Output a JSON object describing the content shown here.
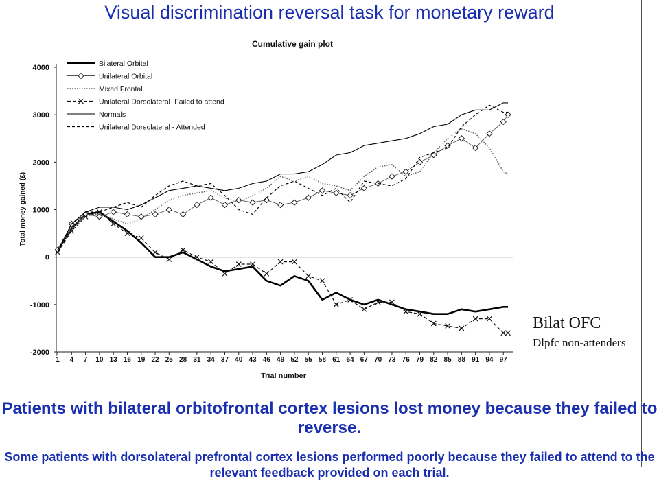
{
  "slide": {
    "title": "Visual discrimination reversal task for monetary reward",
    "note_1": "Bilat OFC",
    "note_2": "Dlpfc non-attenders",
    "conclusion_main": "Patients with bilateral orbitofrontal cortex lesions lost money because they failed to reverse.",
    "conclusion_sub": "Some patients with dorsolateral prefrontal cortex lesions performed poorly because they failed to attend to the relevant feedback provided on each trial."
  },
  "chart_data": {
    "type": "line",
    "title": "Cumulative gain plot",
    "xlabel": "Trial number",
    "ylabel": "Total money gained (£)",
    "ylim": [
      -2000,
      4000
    ],
    "xlim": [
      1,
      98
    ],
    "yticks": [
      -2000,
      -1000,
      0,
      1000,
      2000,
      3000,
      4000
    ],
    "xticks": [
      1,
      4,
      7,
      10,
      13,
      16,
      19,
      22,
      25,
      28,
      31,
      34,
      37,
      40,
      43,
      46,
      49,
      52,
      55,
      58,
      61,
      64,
      67,
      70,
      73,
      76,
      79,
      82,
      85,
      88,
      91,
      94,
      97
    ],
    "grid": false,
    "legend_position": "top-left",
    "series": [
      {
        "name": "Bilateral Orbital",
        "style": "thick-solid",
        "x": [
          1,
          4,
          7,
          10,
          13,
          16,
          19,
          22,
          25,
          28,
          31,
          34,
          37,
          40,
          43,
          46,
          49,
          52,
          55,
          58,
          61,
          64,
          67,
          70,
          73,
          76,
          79,
          82,
          85,
          88,
          91,
          94,
          97,
          98
        ],
        "y": [
          150,
          600,
          900,
          950,
          750,
          550,
          300,
          0,
          0,
          100,
          -50,
          -200,
          -300,
          -250,
          -200,
          -500,
          -600,
          -400,
          -500,
          -900,
          -750,
          -900,
          -1000,
          -900,
          -1000,
          -1100,
          -1150,
          -1200,
          -1200,
          -1100,
          -1150,
          -1100,
          -1050,
          -1050
        ]
      },
      {
        "name": "Unilateral Orbital",
        "style": "thin-diamond",
        "x": [
          1,
          4,
          7,
          10,
          13,
          16,
          19,
          22,
          25,
          28,
          31,
          34,
          37,
          40,
          43,
          46,
          49,
          52,
          55,
          58,
          61,
          64,
          67,
          70,
          73,
          76,
          79,
          82,
          85,
          88,
          91,
          94,
          97,
          98
        ],
        "y": [
          150,
          700,
          900,
          850,
          950,
          900,
          850,
          900,
          1000,
          900,
          1100,
          1250,
          1100,
          1200,
          1150,
          1200,
          1100,
          1150,
          1250,
          1400,
          1350,
          1300,
          1450,
          1550,
          1700,
          1800,
          2000,
          2150,
          2350,
          2500,
          2300,
          2600,
          2850,
          3000
        ]
      },
      {
        "name": "Mixed Frontal",
        "style": "dotted",
        "x": [
          1,
          4,
          7,
          10,
          13,
          16,
          19,
          22,
          25,
          28,
          31,
          34,
          37,
          40,
          43,
          46,
          49,
          52,
          55,
          58,
          61,
          64,
          67,
          70,
          73,
          76,
          79,
          82,
          85,
          88,
          91,
          94,
          97,
          98
        ],
        "y": [
          150,
          600,
          900,
          900,
          800,
          700,
          800,
          1000,
          1200,
          1300,
          1350,
          1400,
          1250,
          1150,
          1300,
          1450,
          1700,
          1600,
          1700,
          1550,
          1500,
          1400,
          1700,
          1900,
          1950,
          1700,
          1800,
          2200,
          2500,
          2700,
          2600,
          2300,
          1800,
          1750
        ]
      },
      {
        "name": "Unilateral Dorsolateral- Failed to attend",
        "style": "dash-x",
        "x": [
          1,
          4,
          7,
          10,
          13,
          16,
          19,
          22,
          25,
          28,
          31,
          34,
          37,
          40,
          43,
          46,
          49,
          52,
          55,
          58,
          61,
          64,
          67,
          70,
          73,
          76,
          79,
          82,
          85,
          88,
          91,
          94,
          97,
          98
        ],
        "y": [
          100,
          550,
          850,
          950,
          700,
          500,
          400,
          100,
          -50,
          150,
          0,
          -100,
          -350,
          -150,
          -150,
          -350,
          -100,
          -100,
          -400,
          -500,
          -1000,
          -900,
          -1100,
          -950,
          -950,
          -1150,
          -1200,
          -1400,
          -1450,
          -1500,
          -1300,
          -1300,
          -1600,
          -1600
        ]
      },
      {
        "name": "Normals",
        "style": "thin-solid",
        "x": [
          1,
          4,
          7,
          10,
          13,
          16,
          19,
          22,
          25,
          28,
          31,
          34,
          37,
          40,
          43,
          46,
          49,
          52,
          55,
          58,
          61,
          64,
          67,
          70,
          73,
          76,
          79,
          82,
          85,
          88,
          91,
          94,
          97,
          98
        ],
        "y": [
          100,
          700,
          950,
          1050,
          1050,
          1000,
          1100,
          1250,
          1400,
          1450,
          1500,
          1450,
          1400,
          1450,
          1550,
          1600,
          1750,
          1750,
          1800,
          1950,
          2150,
          2200,
          2350,
          2400,
          2450,
          2500,
          2600,
          2750,
          2800,
          3000,
          3100,
          3100,
          3250,
          3250
        ]
      },
      {
        "name": "Unilateral Dorsolateral - Attended",
        "style": "dashed",
        "x": [
          1,
          4,
          7,
          10,
          13,
          16,
          19,
          22,
          25,
          28,
          31,
          34,
          37,
          40,
          43,
          46,
          49,
          52,
          55,
          58,
          61,
          64,
          67,
          70,
          73,
          76,
          79,
          82,
          85,
          88,
          91,
          94,
          97,
          98
        ],
        "y": [
          150,
          700,
          950,
          950,
          1050,
          1150,
          1050,
          1300,
          1500,
          1600,
          1500,
          1550,
          1300,
          1000,
          900,
          1250,
          1500,
          1600,
          1450,
          1300,
          1450,
          1150,
          1600,
          1550,
          1500,
          1650,
          2100,
          2200,
          2300,
          2750,
          3000,
          3200,
          3050,
          3050
        ]
      }
    ]
  }
}
